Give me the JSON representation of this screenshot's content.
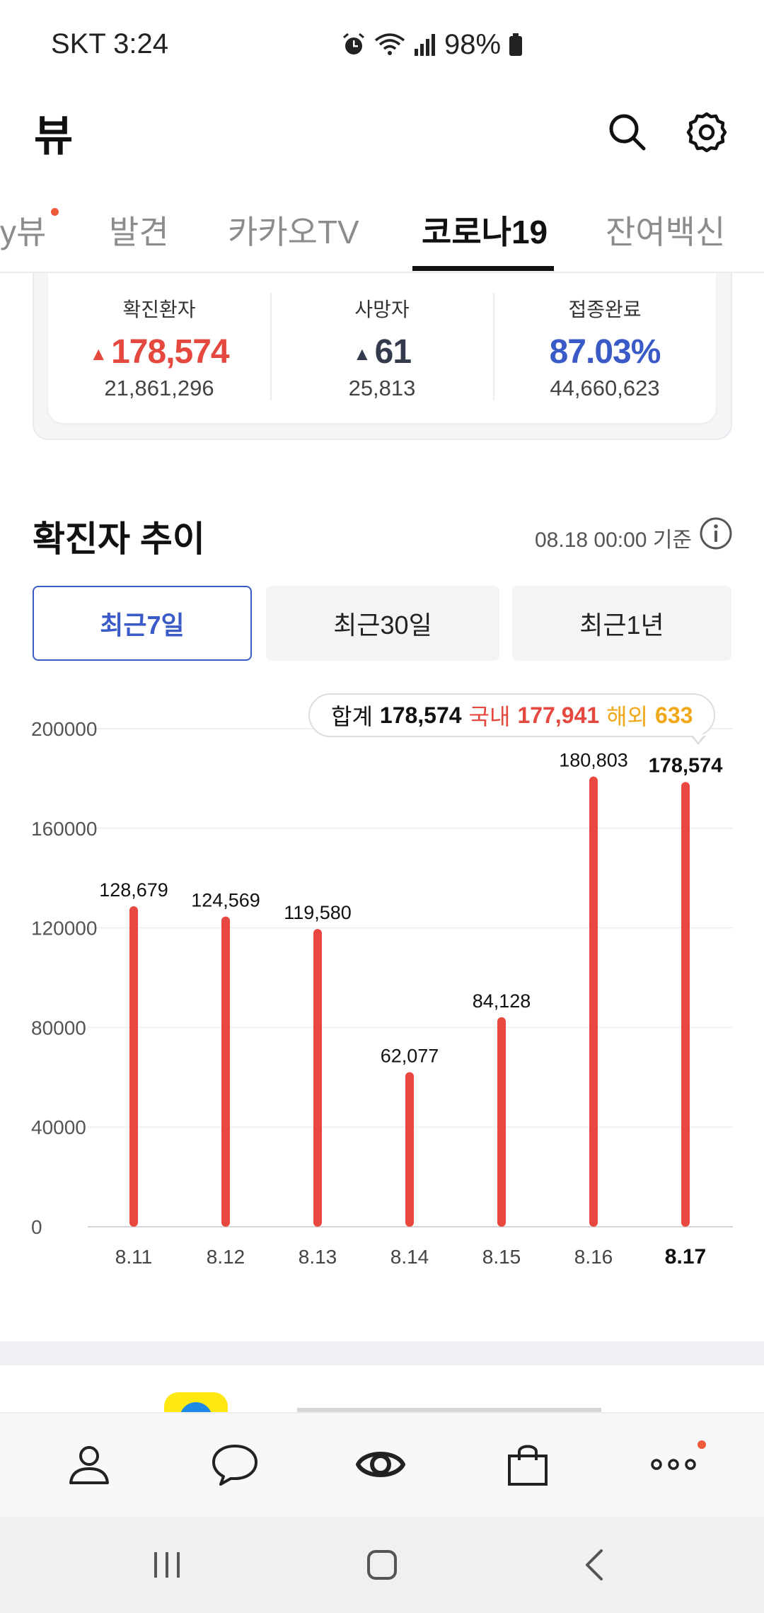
{
  "status": {
    "carrier_time": "SKT 3:24",
    "battery": "98%"
  },
  "header": {
    "title": "뷰"
  },
  "tabs": [
    {
      "label": "y뷰",
      "has_dot": true
    },
    {
      "label": "발견"
    },
    {
      "label": "카카오TV"
    },
    {
      "label": "코로나19",
      "active": true
    },
    {
      "label": "잔여백신"
    }
  ],
  "stats": {
    "confirmed": {
      "label": "확진환자",
      "value": "178,574",
      "total": "21,861,296",
      "color": "#e5483e"
    },
    "deaths": {
      "label": "사망자",
      "value": "61",
      "total": "25,813",
      "color": "#333a4c"
    },
    "vaccinated": {
      "label": "접종완료",
      "value": "87.03%",
      "total": "44,660,623",
      "color": "#3a5bc7"
    }
  },
  "trend": {
    "title": "확진자 추이",
    "timestamp": "08.18 00:00 기준",
    "ranges": [
      "최근7일",
      "최근30일",
      "최근1년"
    ],
    "active_range": 0
  },
  "tooltip": {
    "total_label": "합계",
    "total_value": "178,574",
    "domestic_label": "국내",
    "domestic_value": "177,941",
    "overseas_label": "해외",
    "overseas_value": "633"
  },
  "chart_data": {
    "type": "bar",
    "categories": [
      "8.11",
      "8.12",
      "8.13",
      "8.14",
      "8.15",
      "8.16",
      "8.17"
    ],
    "values": [
      128679,
      124569,
      119580,
      62077,
      84128,
      180803,
      178574
    ],
    "data_labels": [
      "128,679",
      "124,569",
      "119,580",
      "62,077",
      "84,128",
      "180,803",
      "178,574"
    ],
    "yticks": [
      0,
      40000,
      80000,
      120000,
      160000,
      200000
    ],
    "ylim": [
      0,
      200000
    ],
    "highlight_index": 6,
    "bar_color": "#e8483f",
    "grid": true
  },
  "bottom_nav": [
    {
      "icon": "profile-icon"
    },
    {
      "icon": "chat-icon"
    },
    {
      "icon": "view-icon",
      "active": true
    },
    {
      "icon": "shopping-icon"
    },
    {
      "icon": "more-icon",
      "has_dot": true
    }
  ]
}
